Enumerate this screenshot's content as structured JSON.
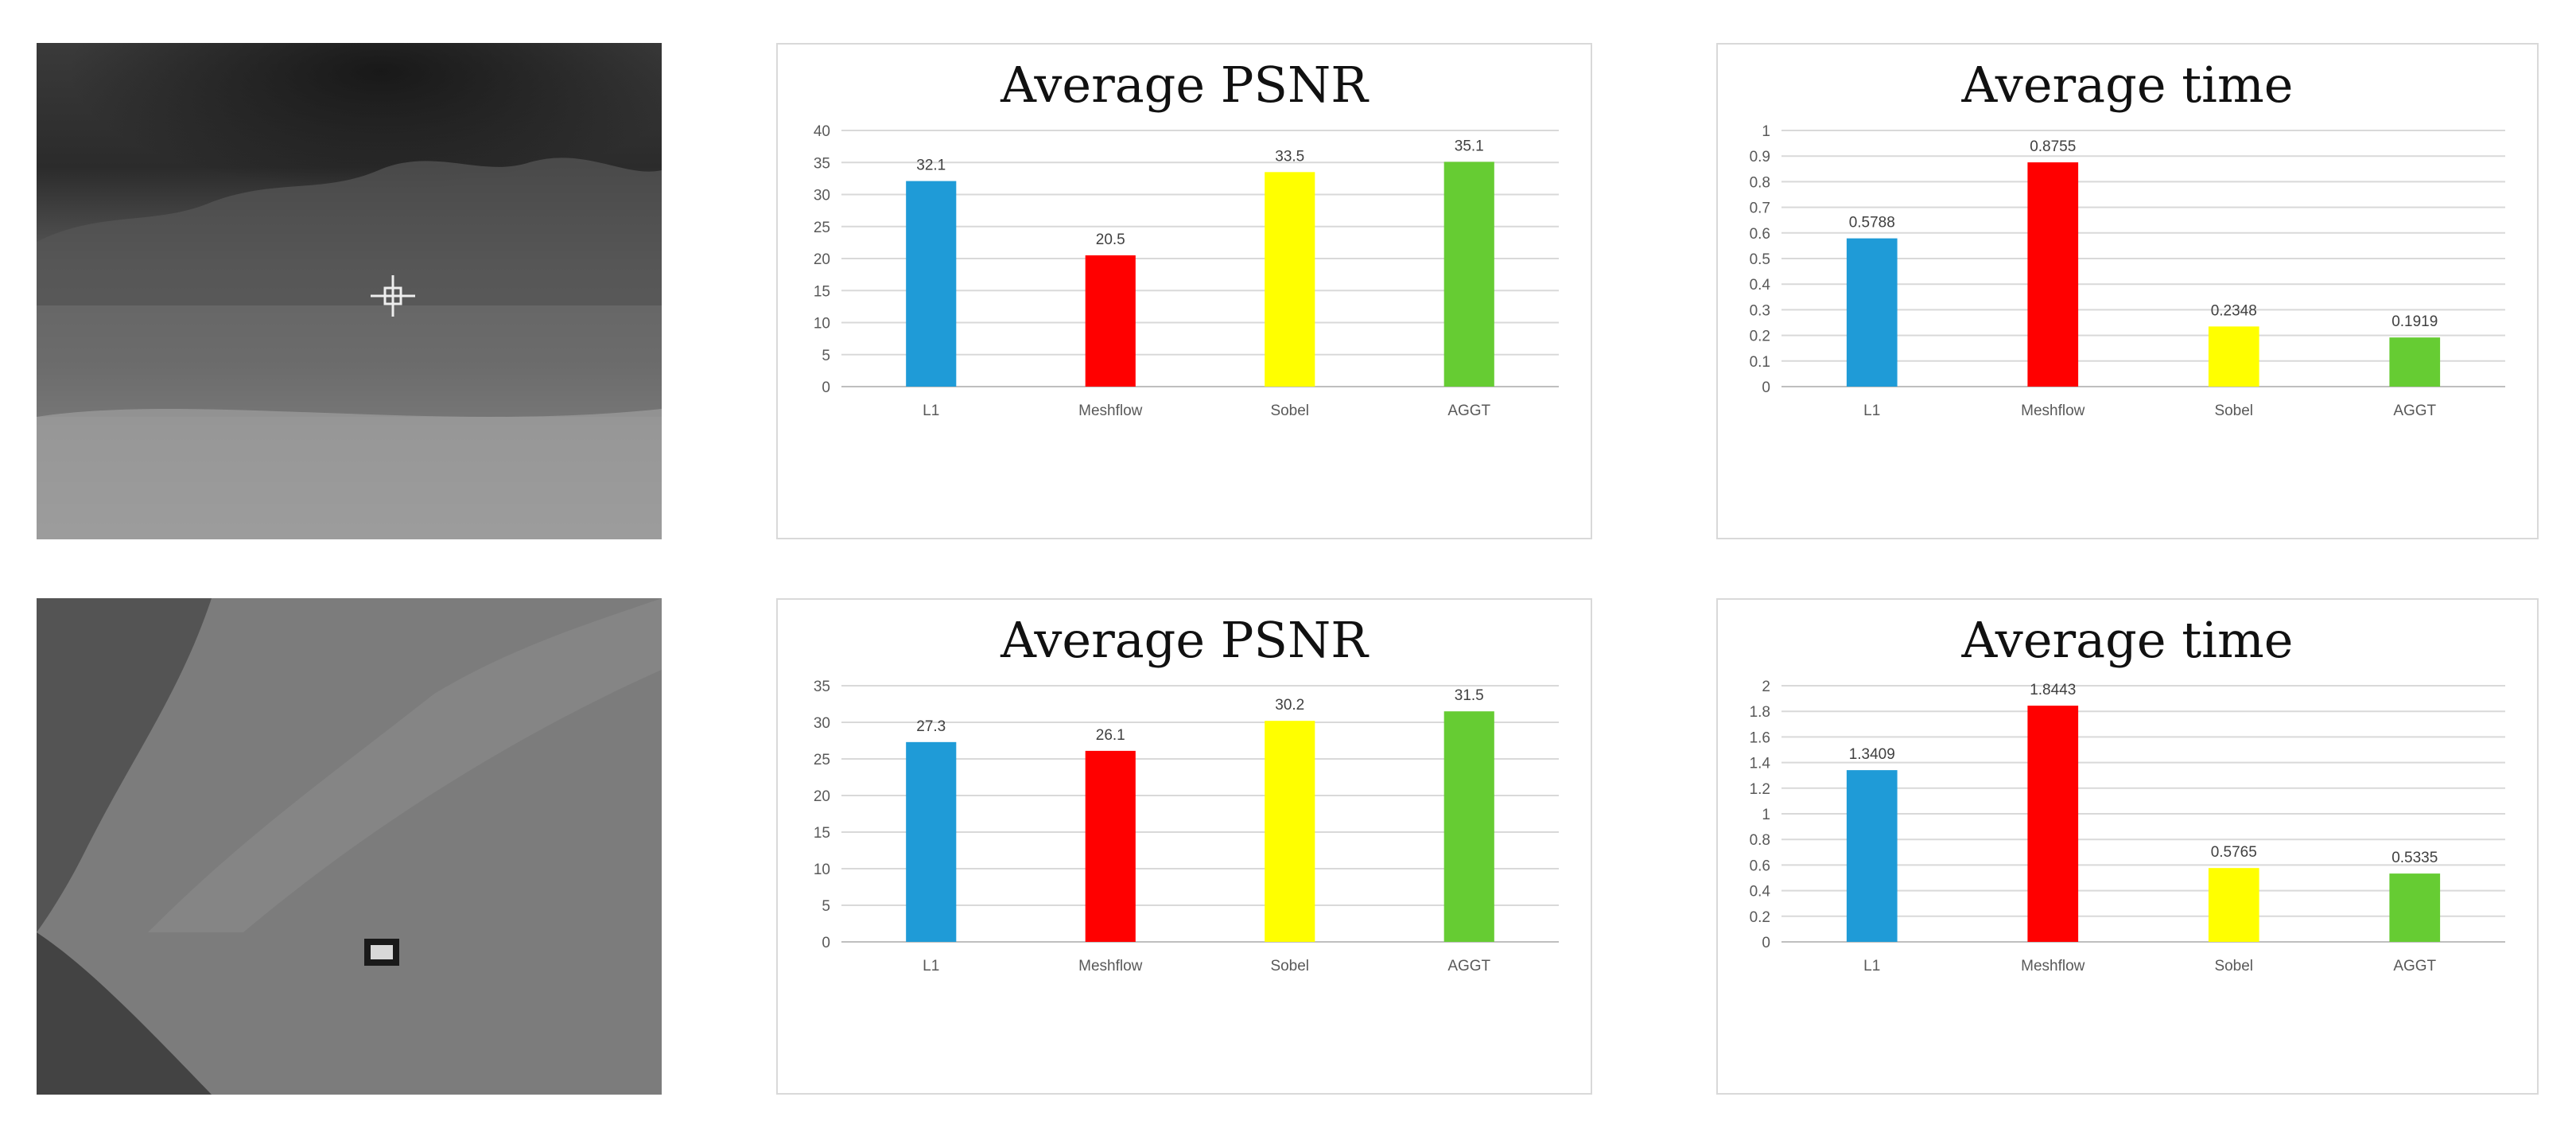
{
  "colors": {
    "l1": "#1f9bd7",
    "meshflow": "#ff0000",
    "sobel": "#ffff00",
    "aggt": "#66cc33",
    "grid": "#d9d9d9",
    "axis": "#bfbfbf"
  },
  "images": [
    {
      "name": "infrared-frame-mountain"
    },
    {
      "name": "infrared-frame-ground"
    }
  ],
  "chart_data": [
    {
      "type": "bar",
      "title": "Average PSNR",
      "categories": [
        "L1",
        "Meshflow",
        "Sobel",
        "AGGT"
      ],
      "values": [
        32.1,
        20.5,
        33.5,
        35.1
      ],
      "labels": [
        "32.1",
        "20.5",
        "33.5",
        "35.1"
      ],
      "ylim": [
        0,
        40
      ],
      "yticks": [
        "0",
        "5",
        "10",
        "15",
        "20",
        "25",
        "30",
        "35",
        "40"
      ],
      "grid": true
    },
    {
      "type": "bar",
      "title": "Average time",
      "categories": [
        "L1",
        "Meshflow",
        "Sobel",
        "AGGT"
      ],
      "values": [
        0.5788,
        0.8755,
        0.2348,
        0.1919
      ],
      "labels": [
        "0.5788",
        "0.8755",
        "0.2348",
        "0.1919"
      ],
      "ylim": [
        0,
        1
      ],
      "yticks": [
        "0",
        "0.1",
        "0.2",
        "0.3",
        "0.4",
        "0.5",
        "0.6",
        "0.7",
        "0.8",
        "0.9",
        "1"
      ],
      "grid": true
    },
    {
      "type": "bar",
      "title": "Average PSNR",
      "categories": [
        "L1",
        "Meshflow",
        "Sobel",
        "AGGT"
      ],
      "values": [
        27.3,
        26.1,
        30.2,
        31.5
      ],
      "labels": [
        "27.3",
        "26.1",
        "30.2",
        "31.5"
      ],
      "ylim": [
        0,
        35
      ],
      "yticks": [
        "0",
        "5",
        "10",
        "15",
        "20",
        "25",
        "30",
        "35"
      ],
      "grid": true
    },
    {
      "type": "bar",
      "title": "Average time",
      "categories": [
        "L1",
        "Meshflow",
        "Sobel",
        "AGGT"
      ],
      "values": [
        1.3409,
        1.8443,
        0.5765,
        0.5335
      ],
      "labels": [
        "1.3409",
        "1.8443",
        "0.5765",
        "0.5335"
      ],
      "ylim": [
        0,
        2
      ],
      "yticks": [
        "0",
        "0.2",
        "0.4",
        "0.6",
        "0.8",
        "1",
        "1.2",
        "1.4",
        "1.6",
        "1.8",
        "2"
      ],
      "grid": true
    }
  ]
}
